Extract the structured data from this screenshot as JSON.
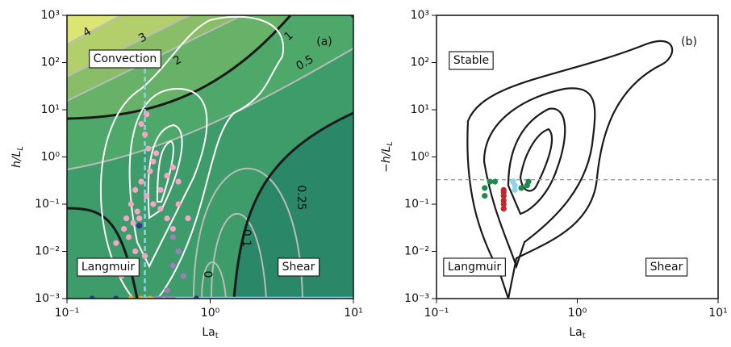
{
  "chart_data": [
    {
      "type": "scatter",
      "panel_label": "(a)",
      "x_label": [
        "La",
        "t"
      ],
      "y_label": [
        "h/L",
        "L"
      ],
      "xscale": "log",
      "yscale": "log",
      "xlim": [
        0.1,
        10
      ],
      "ylim": [
        0.001,
        1000
      ],
      "xticks": [
        {
          "value": 0.1,
          "label": "10⁻¹"
        },
        {
          "value": 1,
          "label": "10⁰"
        },
        {
          "value": 10,
          "label": "10¹"
        }
      ],
      "yticks": [
        {
          "value": 0.001,
          "label": "10⁻³"
        },
        {
          "value": 0.01,
          "label": "10⁻²"
        },
        {
          "value": 0.1,
          "label": "10⁻¹"
        },
        {
          "value": 1,
          "label": "10⁰"
        },
        {
          "value": 10,
          "label": "10¹"
        },
        {
          "value": 100,
          "label": "10²"
        },
        {
          "value": 1000,
          "label": "10³"
        }
      ],
      "annotations": [
        "Convection",
        "Langmuir",
        "Shear"
      ],
      "contour_labels": [
        "4",
        "3",
        "2",
        "1",
        "0.5",
        "0.25",
        "0.1",
        "0"
      ],
      "vline": 0.35,
      "vline_color": "#8fd3e8",
      "series": [
        {
          "color": "#f4a6c6",
          "x": [
            0.35,
            0.37,
            0.4,
            0.33,
            0.3,
            0.28,
            0.32,
            0.25,
            0.27,
            0.22,
            0.3,
            0.35,
            0.4,
            0.45,
            0.5,
            0.55,
            0.6,
            0.42,
            0.38,
            0.36,
            0.31,
            0.29,
            0.26,
            0.5,
            0.6,
            0.55,
            0.7,
            0.33,
            0.36,
            0.45,
            0.24,
            0.28
          ],
          "y": [
            3,
            1.5,
            0.8,
            0.3,
            0.2,
            0.1,
            0.05,
            0.03,
            0.02,
            0.015,
            0.01,
            0.008,
            0.1,
            0.2,
            0.4,
            0.6,
            0.3,
            1.2,
            0.5,
            0.15,
            0.07,
            0.04,
            0.05,
            0.05,
            0.1,
            0.03,
            0.05,
            5,
            8,
            0.08,
            0.003,
            0.006
          ]
        },
        {
          "color": "#9b7fc0",
          "x": [
            0.55,
            0.6,
            0.55,
            0.65,
            0.5,
            0.45,
            0.5,
            0.55,
            0.42
          ],
          "y": [
            0.02,
            0.01,
            0.005,
            0.003,
            0.0015,
            0.001,
            0.001,
            0.001,
            0.001
          ]
        },
        {
          "color": "#f5a623",
          "x": [
            0.28,
            0.33,
            0.38
          ],
          "y": [
            0.001,
            0.001,
            0.001
          ]
        },
        {
          "color": "#2b3a8c",
          "x": [
            0.15,
            0.22,
            0.32,
            0.8,
            10
          ],
          "y": [
            0.001,
            0.001,
            0.035,
            0.001,
            1000
          ]
        }
      ]
    },
    {
      "type": "scatter",
      "panel_label": "(b)",
      "x_label": [
        "La",
        "t"
      ],
      "y_label": [
        "−h/L",
        "L"
      ],
      "xscale": "log",
      "yscale": "log",
      "xlim": [
        0.1,
        10
      ],
      "ylim": [
        0.001,
        1000
      ],
      "xticks": [
        {
          "value": 0.1,
          "label": "10⁻¹"
        },
        {
          "value": 1,
          "label": "10⁰"
        },
        {
          "value": 10,
          "label": "10¹"
        }
      ],
      "yticks": [
        {
          "value": 0.001,
          "label": "10⁻³"
        },
        {
          "value": 0.01,
          "label": "10⁻²"
        },
        {
          "value": 0.1,
          "label": "10⁻¹"
        },
        {
          "value": 1,
          "label": "10⁰"
        },
        {
          "value": 10,
          "label": "10¹"
        },
        {
          "value": 100,
          "label": "10²"
        },
        {
          "value": 1000,
          "label": "10³"
        }
      ],
      "annotations": [
        "Stable",
        "Langmuir",
        "Shear"
      ],
      "hline": 0.33,
      "hline_color": "#999999",
      "series": [
        {
          "color": "#1e8a4c",
          "x": [
            0.22,
            0.24,
            0.22,
            0.26,
            0.35,
            0.4,
            0.45,
            0.44
          ],
          "y": [
            0.22,
            0.3,
            0.15,
            0.3,
            0.3,
            0.22,
            0.3,
            0.25
          ]
        },
        {
          "color": "#c0282d",
          "x": [
            0.3,
            0.3,
            0.3,
            0.3,
            0.3,
            0.3
          ],
          "y": [
            0.08,
            0.1,
            0.12,
            0.15,
            0.18,
            0.2
          ]
        },
        {
          "color": "#8fd3e8",
          "x": [
            0.36,
            0.36,
            0.35
          ],
          "y": [
            0.2,
            0.25,
            0.3
          ]
        }
      ]
    }
  ]
}
